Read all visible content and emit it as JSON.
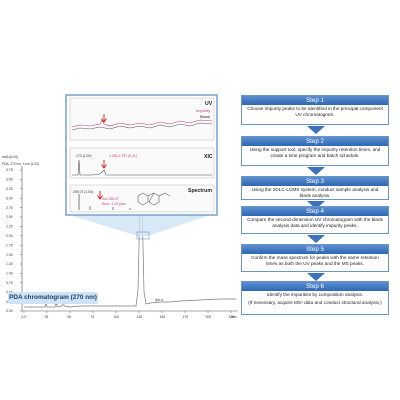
{
  "inset": {
    "uv": {
      "title": "UV",
      "legend_impurity": "Impurity",
      "legend_blank": "Blank"
    },
    "xic": {
      "title": "XIC",
      "peak_label_a": "170 (1.00)",
      "peak_label_b": "1.250-1.757 (0.21)"
    },
    "spectrum": {
      "title": "Spectrum",
      "peak_label_a": "255.07 (1.00)",
      "peak_label_b": "m/z 255.07",
      "peak_label_c": "Error: 1.24 ppm"
    }
  },
  "chromatogram": {
    "y_unit_label": "mAU(x10)",
    "y_channel_label": "PDA, 270 nm, 4 nm (1.00)",
    "y_ticks": [
      "3.75",
      "3.50",
      "3.25",
      "3.00",
      "2.75",
      "2.50",
      "2.25",
      "2.00",
      "1.75",
      "1.50",
      "1.25",
      "1.00",
      "0.75",
      "0.50",
      "0.25",
      "0.00"
    ],
    "x_ticks": [
      "0.0",
      "25",
      "50",
      "75",
      "100",
      "125",
      "150",
      "175",
      "200",
      "225"
    ],
    "x_unit": "min",
    "peak_labels": [
      "Ipk-1",
      "Ipk-2",
      "Ipk-3",
      "Ipk-4"
    ],
    "badge": "PDA chromatogram (270 nm)"
  },
  "steps": [
    {
      "title": "Step 1",
      "body": "Choose impurity peaks to be identified in the principal component UV chromatogram."
    },
    {
      "title": "Step 2",
      "body": "Using the support tool, specify the impurity retention times, and create a time program and batch schedule."
    },
    {
      "title": "Step 3",
      "body": "Using the 2DLC-LCMS system, conduct sample analysis and blank analysis."
    },
    {
      "title": "Step 4",
      "body": "Compare the second-dimension UV chromatogram with the blank analysis data and identify impurity peaks."
    },
    {
      "title": "Step 5",
      "body": "Confirm the mass spectrum for peaks with the same retention times as both the UV peaks and the MS peaks."
    },
    {
      "title": "Step 6",
      "body": "Identify the impurities by composition analysis.",
      "note": "(If necessary, acquire MSⁿ data and conduct structural analysis.)"
    }
  ],
  "colors": {
    "accent_blue": "#2f67b3",
    "impurity_trace": "#c0397b",
    "blank_trace": "#555555",
    "marker_red": "#e2262b"
  }
}
